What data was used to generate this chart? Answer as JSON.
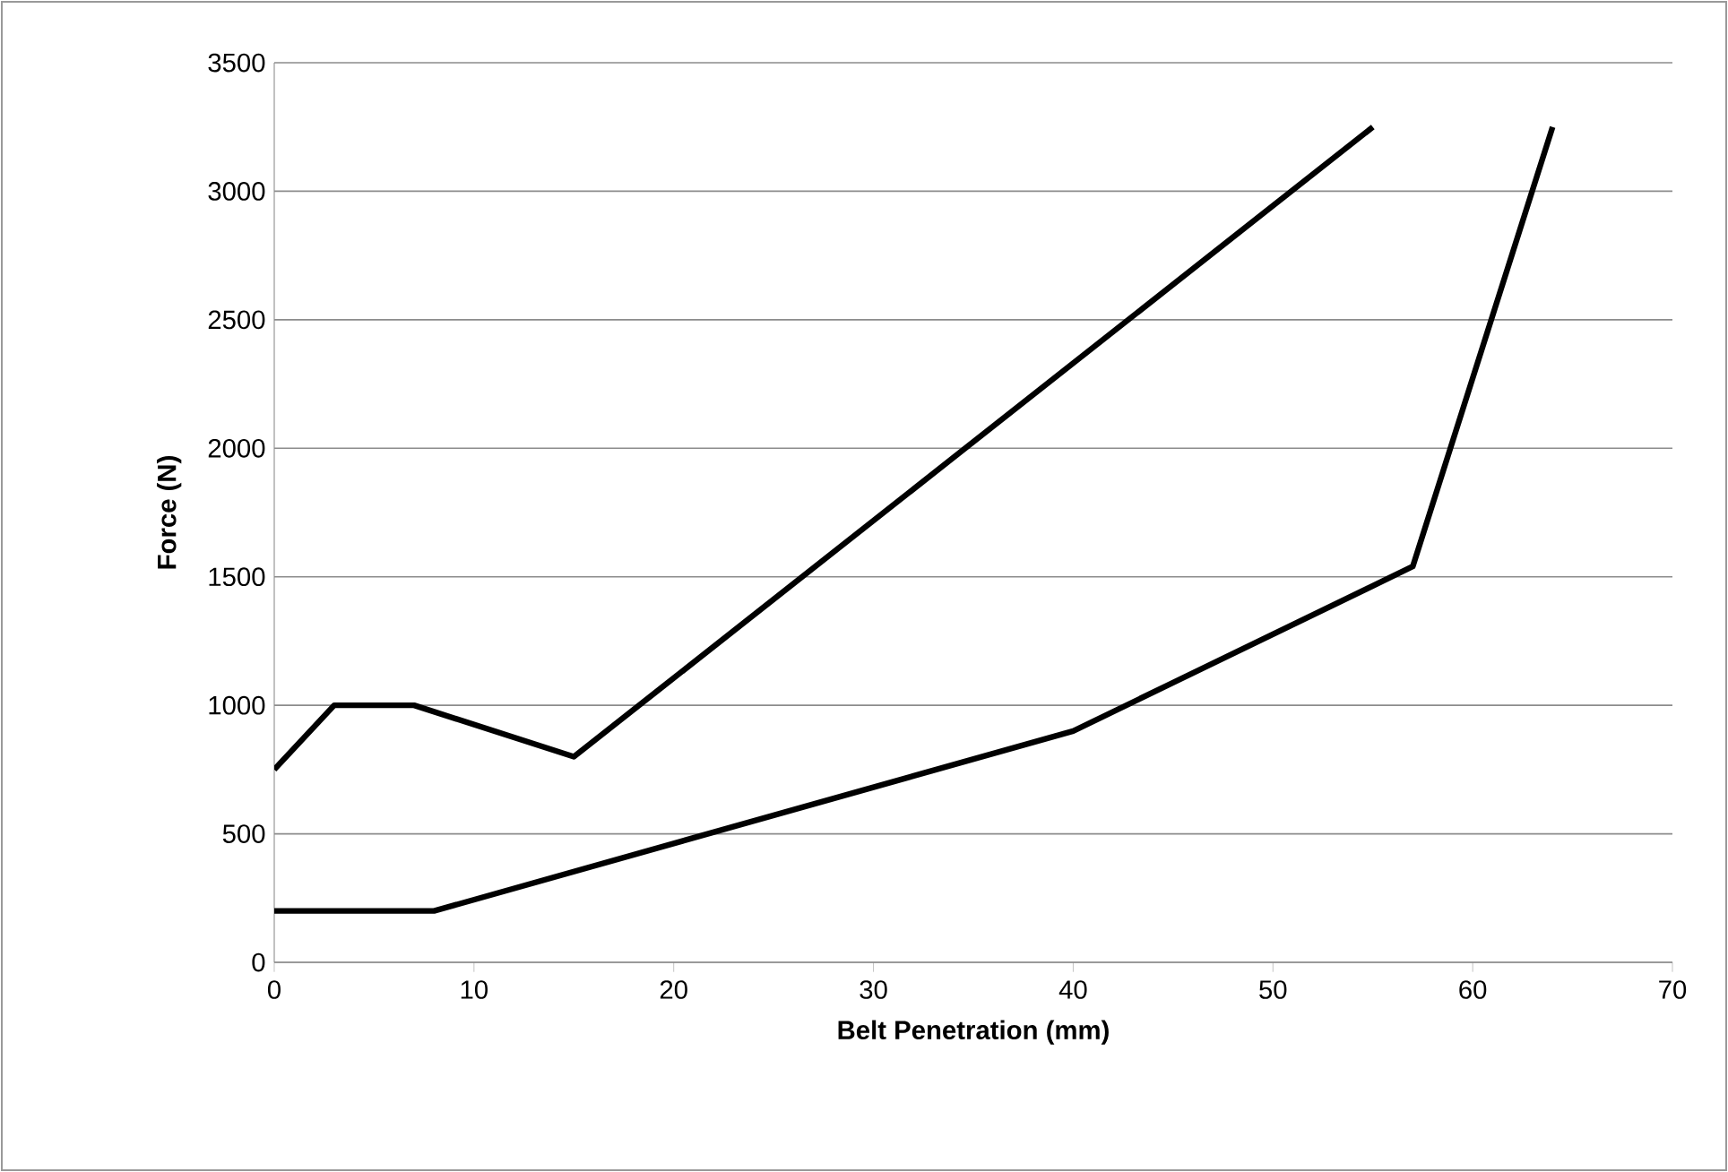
{
  "chart_data": {
    "type": "line",
    "xlabel": "Belt Penetration (mm)",
    "ylabel": "Force (N)",
    "series": [
      {
        "color": "#000000",
        "x": [
          0,
          3,
          7,
          15,
          55
        ],
        "values": [
          750,
          1000,
          1000,
          800,
          3250
        ]
      },
      {
        "color": "#000000",
        "x": [
          0,
          8,
          40,
          57,
          64
        ],
        "values": [
          200,
          200,
          900,
          1540,
          3250
        ]
      }
    ],
    "xlim": [
      0,
      70
    ],
    "ylim": [
      0,
      3500
    ],
    "xticks": [
      0,
      10,
      20,
      30,
      40,
      50,
      60,
      70
    ],
    "yticks": [
      0,
      500,
      1000,
      1500,
      2000,
      2500,
      3000,
      3500
    ],
    "grid": "y",
    "marker": "none",
    "line_style": "solid"
  }
}
